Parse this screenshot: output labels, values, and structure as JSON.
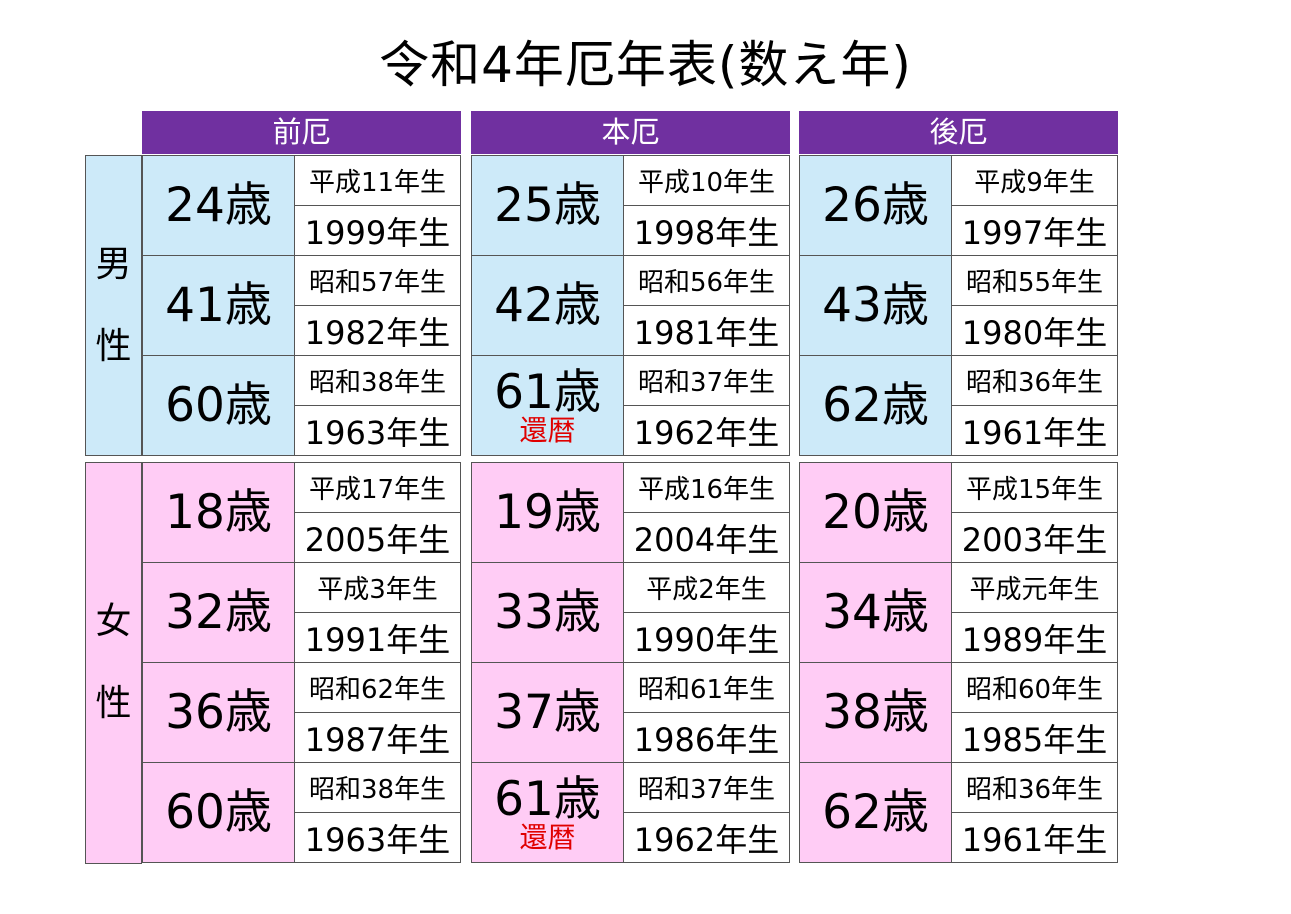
{
  "title": "令和4年厄年表(数え年)",
  "headers": [
    "前厄",
    "本厄",
    "後厄"
  ],
  "kanreki_label": "還暦",
  "colors": {
    "header_purple": "#7030a0",
    "male_blue": "#cdeaf9",
    "female_pink": "#ffccf5",
    "kanreki_red": "#e00000"
  },
  "male": {
    "label": [
      "男",
      "性"
    ],
    "rows": [
      [
        {
          "age": "24歳",
          "era": "平成11年生",
          "year": "1999年生"
        },
        {
          "age": "25歳",
          "era": "平成10年生",
          "year": "1998年生"
        },
        {
          "age": "26歳",
          "era": "平成9年生",
          "year": "1997年生"
        }
      ],
      [
        {
          "age": "41歳",
          "era": "昭和57年生",
          "year": "1982年生"
        },
        {
          "age": "42歳",
          "era": "昭和56年生",
          "year": "1981年生"
        },
        {
          "age": "43歳",
          "era": "昭和55年生",
          "year": "1980年生"
        }
      ],
      [
        {
          "age": "60歳",
          "era": "昭和38年生",
          "year": "1963年生"
        },
        {
          "age": "61歳",
          "era": "昭和37年生",
          "year": "1962年生",
          "kanreki": true
        },
        {
          "age": "62歳",
          "era": "昭和36年生",
          "year": "1961年生"
        }
      ]
    ]
  },
  "female": {
    "label": [
      "女",
      "性"
    ],
    "rows": [
      [
        {
          "age": "18歳",
          "era": "平成17年生",
          "year": "2005年生"
        },
        {
          "age": "19歳",
          "era": "平成16年生",
          "year": "2004年生"
        },
        {
          "age": "20歳",
          "era": "平成15年生",
          "year": "2003年生"
        }
      ],
      [
        {
          "age": "32歳",
          "era": "平成3年生",
          "year": "1991年生"
        },
        {
          "age": "33歳",
          "era": "平成2年生",
          "year": "1990年生"
        },
        {
          "age": "34歳",
          "era": "平成元年生",
          "year": "1989年生"
        }
      ],
      [
        {
          "age": "36歳",
          "era": "昭和62年生",
          "year": "1987年生"
        },
        {
          "age": "37歳",
          "era": "昭和61年生",
          "year": "1986年生"
        },
        {
          "age": "38歳",
          "era": "昭和60年生",
          "year": "1985年生"
        }
      ],
      [
        {
          "age": "60歳",
          "era": "昭和38年生",
          "year": "1963年生"
        },
        {
          "age": "61歳",
          "era": "昭和37年生",
          "year": "1962年生",
          "kanreki": true
        },
        {
          "age": "62歳",
          "era": "昭和36年生",
          "year": "1961年生"
        }
      ]
    ]
  }
}
